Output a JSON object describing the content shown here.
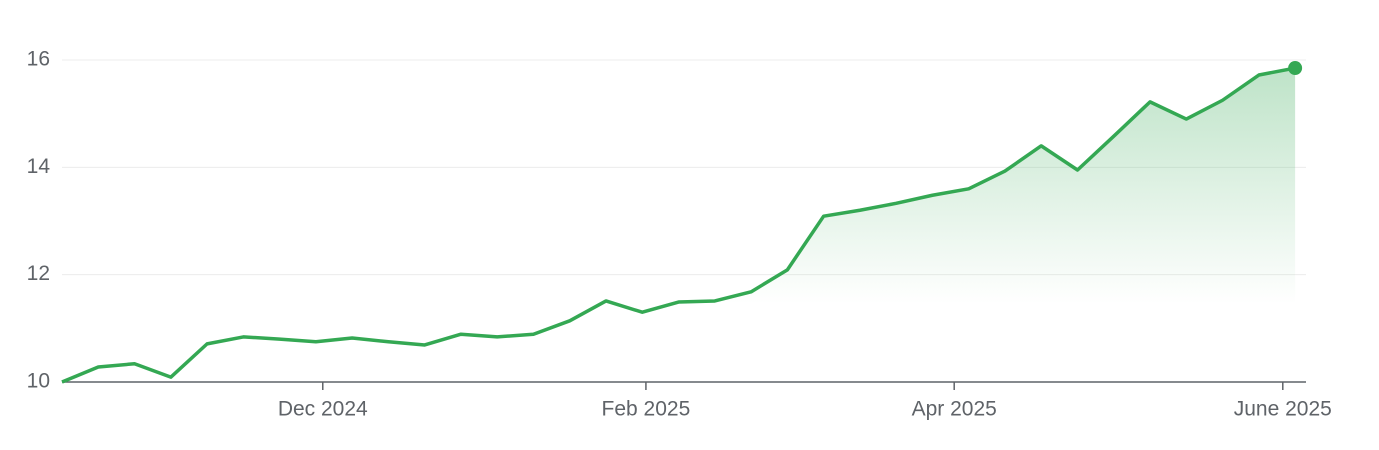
{
  "chart_data": {
    "type": "line",
    "x": [
      0,
      1,
      2,
      3,
      4,
      5,
      6,
      7,
      8,
      9,
      10,
      11,
      12,
      13,
      14,
      15,
      16,
      17,
      18,
      19,
      20,
      21,
      22,
      23,
      24,
      25,
      26,
      27,
      28,
      29,
      30,
      31,
      32,
      33,
      34
    ],
    "series": [
      {
        "color": "#34a853",
        "values": [
          10.0,
          10.28,
          10.34,
          10.09,
          10.71,
          10.84,
          10.8,
          10.75,
          10.82,
          10.75,
          10.69,
          10.89,
          10.84,
          10.89,
          11.14,
          11.51,
          11.3,
          11.49,
          11.51,
          11.68,
          12.09,
          13.09,
          13.2,
          13.33,
          13.48,
          13.6,
          13.93,
          14.4,
          13.95,
          14.58,
          15.22,
          14.9,
          15.25,
          15.72,
          15.85
        ]
      }
    ],
    "xlim": [
      0,
      34.3
    ],
    "xticks": [
      {
        "value": 7.19,
        "label": "Dec 2024"
      },
      {
        "value": 16.1,
        "label": "Feb 2025"
      },
      {
        "value": 24.6,
        "label": "Apr 2025"
      },
      {
        "value": 33.66,
        "label": "June 2025"
      }
    ],
    "ylim": [
      10,
      16
    ],
    "yticks": [
      10,
      12,
      14,
      16
    ],
    "grid": true,
    "area": true
  }
}
